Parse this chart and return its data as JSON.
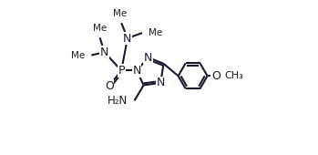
{
  "background_color": "#ffffff",
  "line_color": "#1a1a2e",
  "text_color": "#1a1a2e",
  "bond_lw": 1.5,
  "dbo": 0.012,
  "figsize": [
    3.49,
    1.7
  ],
  "dpi": 100,
  "xlim": [
    0.0,
    1.0
  ],
  "ylim": [
    0.0,
    1.0
  ]
}
